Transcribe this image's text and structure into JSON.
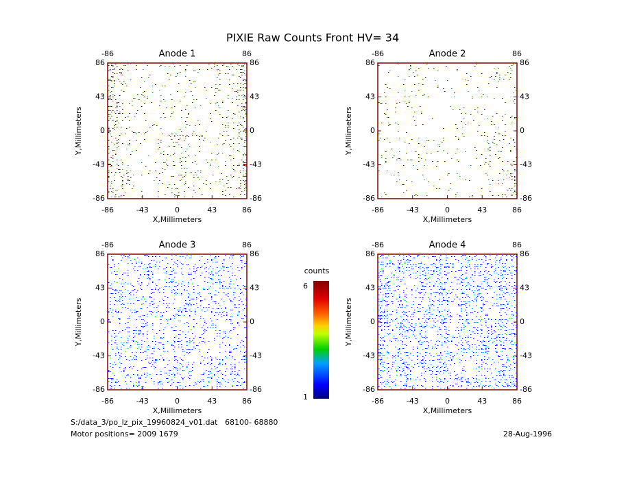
{
  "title": "PIXIE Raw Counts Front HV= 34",
  "chart_data": [
    {
      "type": "heatmap",
      "title": "Anode 1",
      "xlabel": "X,Millimeters",
      "ylabel": "Y,Millimeters",
      "xlim": [
        -86,
        86
      ],
      "ylim": [
        -86,
        86
      ],
      "xticks": [
        -86,
        -43,
        0,
        43,
        86
      ],
      "yticks": [
        -86,
        -43,
        0,
        43,
        86
      ]
    },
    {
      "type": "heatmap",
      "title": "Anode 2",
      "xlabel": "X,Millimeters",
      "ylabel": "Y,Millimeters",
      "xlim": [
        -86,
        86
      ],
      "ylim": [
        -86,
        86
      ],
      "xticks": [
        -86,
        -43,
        0,
        43,
        86
      ],
      "yticks": [
        -86,
        -43,
        0,
        43,
        86
      ]
    },
    {
      "type": "heatmap",
      "title": "Anode 3",
      "xlabel": "X,Millimeters",
      "ylabel": "Y,Millimeters",
      "xlim": [
        -86,
        86
      ],
      "ylim": [
        -86,
        86
      ],
      "xticks": [
        -86,
        -43,
        0,
        43,
        86
      ],
      "yticks": [
        -86,
        -43,
        0,
        43,
        86
      ]
    },
    {
      "type": "heatmap",
      "title": "Anode 4",
      "xlabel": "X,Millimeters",
      "ylabel": "Y,Millimeters",
      "xlim": [
        -86,
        86
      ],
      "ylim": [
        -86,
        86
      ],
      "xticks": [
        -86,
        -43,
        0,
        43,
        86
      ],
      "yticks": [
        -86,
        -43,
        0,
        43,
        86
      ]
    }
  ],
  "colorbar": {
    "label": "counts",
    "lim": [
      1,
      6
    ],
    "ticks": [
      1,
      6
    ]
  },
  "footer": {
    "file": "S:/data_3/po_lz_pix_19960824_v01.dat   68100- 68880",
    "motor": "Motor positions= 2009 1679",
    "date": "28-Aug-1996"
  }
}
